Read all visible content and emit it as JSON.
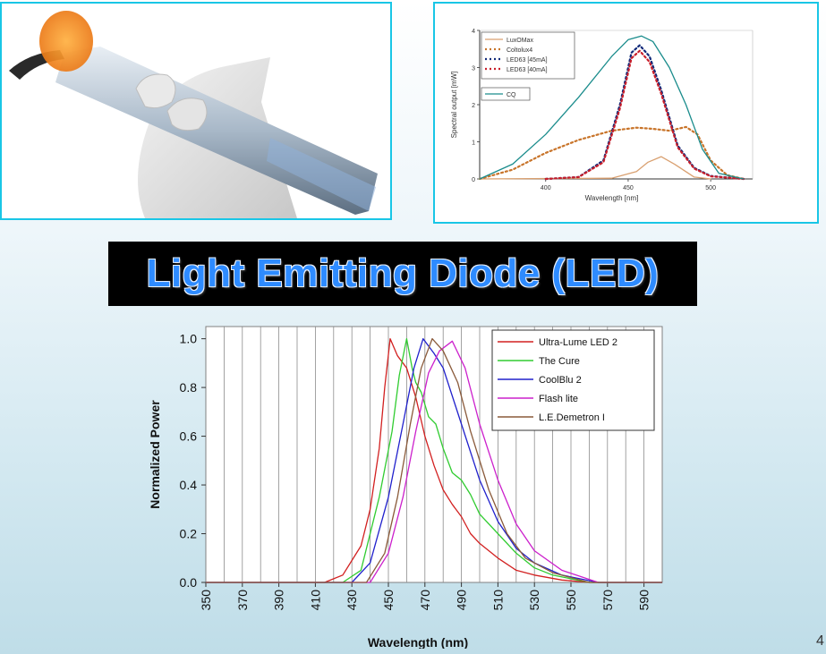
{
  "title": "Light Emitting Diode (LED)",
  "page_number": "4",
  "colors": {
    "frame_border": "#19c6e6",
    "title_bg": "#000000",
    "title_text": "#2e8bff"
  },
  "chart_data": [
    {
      "type": "line",
      "xlabel": "Wavelength [nm]",
      "ylabel": "Spectral output [mW]",
      "xlim": [
        360,
        520
      ],
      "ylim": [
        0,
        4
      ],
      "x_ticks": [
        "400",
        "450",
        "500"
      ],
      "y_ticks": [
        "0",
        "1",
        "2",
        "3",
        "4"
      ],
      "legend_position": "top-left",
      "series": [
        {
          "name": "LuxOMax",
          "color": "#d9a070",
          "style": "solid",
          "x": [
            360,
            440,
            455,
            462,
            470,
            478,
            490,
            500
          ],
          "y": [
            0,
            0.02,
            0.2,
            0.45,
            0.6,
            0.4,
            0.05,
            0
          ]
        },
        {
          "name": "Coltolux4",
          "color": "#c8742a",
          "style": "dotted",
          "x": [
            360,
            380,
            400,
            420,
            440,
            455,
            465,
            475,
            485,
            492,
            500,
            510,
            520
          ],
          "y": [
            0,
            0.25,
            0.7,
            1.05,
            1.3,
            1.38,
            1.35,
            1.3,
            1.4,
            1.2,
            0.5,
            0.1,
            0
          ]
        },
        {
          "name": "LED63 [45mA]",
          "color": "#102a7a",
          "style": "dotted",
          "x": [
            400,
            420,
            435,
            445,
            452,
            457,
            463,
            470,
            480,
            490,
            500,
            520
          ],
          "y": [
            0,
            0.05,
            0.5,
            2.0,
            3.4,
            3.6,
            3.3,
            2.4,
            0.9,
            0.3,
            0.08,
            0
          ]
        },
        {
          "name": "LED63 [40mA]",
          "color": "#c81e2a",
          "style": "dotted",
          "x": [
            400,
            420,
            435,
            445,
            452,
            457,
            463,
            470,
            480,
            490,
            500,
            520
          ],
          "y": [
            0,
            0.05,
            0.45,
            1.9,
            3.25,
            3.45,
            3.15,
            2.3,
            0.85,
            0.28,
            0.07,
            0
          ]
        },
        {
          "name": "CQ",
          "color": "#1a8c8c",
          "style": "solid",
          "x": [
            360,
            380,
            400,
            420,
            440,
            450,
            458,
            465,
            475,
            485,
            495,
            505,
            520
          ],
          "y": [
            0,
            0.4,
            1.2,
            2.2,
            3.3,
            3.75,
            3.85,
            3.7,
            3.0,
            2.0,
            0.8,
            0.15,
            0
          ]
        }
      ]
    },
    {
      "type": "line",
      "xlabel": "Wavelength (nm)",
      "ylabel": "Normalized Power",
      "xlim": [
        350,
        600
      ],
      "ylim": [
        0,
        1.05
      ],
      "x_ticks": [
        "350",
        "370",
        "390",
        "410",
        "430",
        "450",
        "470",
        "490",
        "510",
        "530",
        "550",
        "570",
        "590"
      ],
      "y_ticks": [
        "0.0",
        "0.2",
        "0.4",
        "0.6",
        "0.8",
        "1.0"
      ],
      "grid": "vertical",
      "legend_position": "top-right",
      "series": [
        {
          "name": "Ultra-Lume LED 2",
          "color": "#d22020",
          "x": [
            350,
            415,
            425,
            435,
            440,
            445,
            448,
            451,
            455,
            460,
            465,
            470,
            475,
            480,
            485,
            490,
            495,
            500,
            510,
            520,
            530,
            545,
            560,
            600
          ],
          "y": [
            0,
            0,
            0.03,
            0.15,
            0.3,
            0.55,
            0.8,
            1.0,
            0.93,
            0.88,
            0.76,
            0.6,
            0.48,
            0.38,
            0.32,
            0.27,
            0.2,
            0.16,
            0.1,
            0.05,
            0.03,
            0.01,
            0,
            0
          ]
        },
        {
          "name": "The Cure",
          "color": "#30cc30",
          "x": [
            350,
            425,
            435,
            445,
            452,
            456,
            460,
            463,
            465,
            468,
            472,
            476,
            480,
            485,
            490,
            495,
            500,
            510,
            520,
            530,
            540,
            560,
            600
          ],
          "y": [
            0,
            0,
            0.05,
            0.35,
            0.62,
            0.85,
            1.0,
            0.88,
            0.82,
            0.78,
            0.68,
            0.65,
            0.55,
            0.45,
            0.42,
            0.36,
            0.28,
            0.2,
            0.12,
            0.06,
            0.03,
            0,
            0
          ]
        },
        {
          "name": "CoolBlu 2",
          "color": "#2020cc",
          "x": [
            350,
            430,
            440,
            450,
            458,
            464,
            469,
            475,
            480,
            490,
            500,
            510,
            520,
            530,
            545,
            565,
            600
          ],
          "y": [
            0,
            0,
            0.08,
            0.35,
            0.65,
            0.88,
            1.0,
            0.94,
            0.88,
            0.65,
            0.42,
            0.25,
            0.14,
            0.08,
            0.03,
            0,
            0
          ]
        },
        {
          "name": "Flash lite",
          "color": "#cc20cc",
          "x": [
            350,
            440,
            450,
            458,
            465,
            472,
            478,
            485,
            492,
            500,
            510,
            520,
            530,
            545,
            565,
            600
          ],
          "y": [
            0,
            0,
            0.12,
            0.35,
            0.62,
            0.86,
            0.95,
            0.99,
            0.88,
            0.65,
            0.42,
            0.24,
            0.13,
            0.05,
            0,
            0
          ]
        },
        {
          "name": "L.E.Demetron I",
          "color": "#8a5a3a",
          "x": [
            350,
            438,
            448,
            455,
            462,
            468,
            474,
            480,
            488,
            495,
            505,
            515,
            525,
            540,
            560,
            600
          ],
          "y": [
            0,
            0,
            0.12,
            0.35,
            0.65,
            0.88,
            1.0,
            0.95,
            0.82,
            0.62,
            0.38,
            0.2,
            0.1,
            0.04,
            0,
            0
          ]
        }
      ]
    }
  ]
}
